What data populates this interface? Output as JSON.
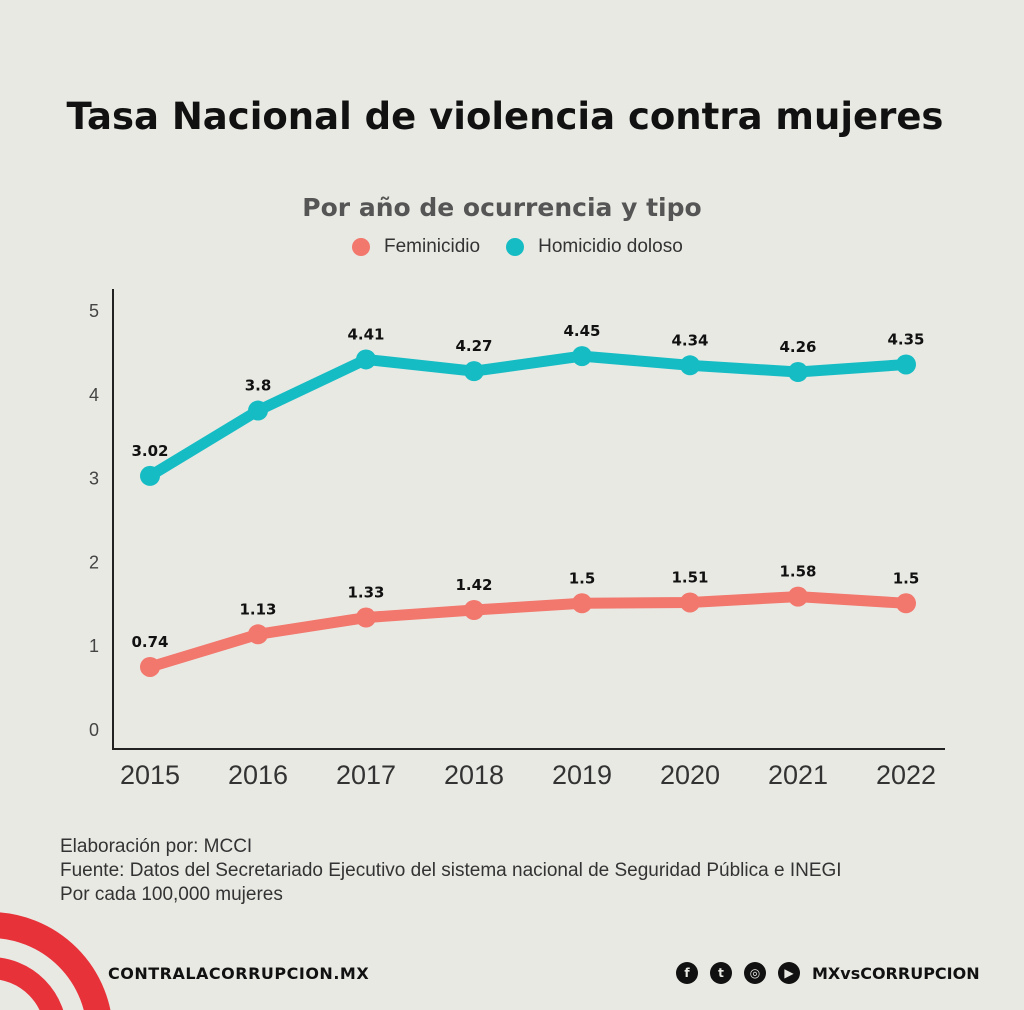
{
  "chart_data": {
    "type": "line",
    "title": "Tasa Nacional de violencia contra mujeres",
    "subtitle": "Por año de ocurrencia y tipo",
    "categories": [
      "2015",
      "2016",
      "2017",
      "2018",
      "2019",
      "2020",
      "2021",
      "2022"
    ],
    "series": [
      {
        "name": "Feminicidio",
        "color": "#f2776c",
        "values": [
          0.74,
          1.13,
          1.33,
          1.42,
          1.5,
          1.51,
          1.58,
          1.5
        ],
        "labels": [
          "0.74",
          "1.13",
          "1.33",
          "1.42",
          "1.5",
          "1.51",
          "1.58",
          "1.5"
        ]
      },
      {
        "name": "Homicidio doloso",
        "color": "#16bcc4",
        "values": [
          3.02,
          3.8,
          4.41,
          4.27,
          4.45,
          4.34,
          4.26,
          4.35
        ],
        "labels": [
          "3.02",
          "3.8",
          "4.41",
          "4.27",
          "4.45",
          "4.34",
          "4.26",
          "4.35"
        ]
      }
    ],
    "ylim": [
      0,
      5
    ],
    "yticks": [
      "0",
      "1",
      "2",
      "3",
      "4",
      "5"
    ],
    "legend": "top",
    "grid": false
  },
  "notes": [
    "Elaboración por: MCCI",
    "Fuente: Datos del Secretariado Ejecutivo del sistema nacional de Seguridad Pública e INEGI",
    "Por cada 100,000 mujeres"
  ],
  "footer": {
    "site": "CONTRALACORRUPCION.MX",
    "handle": "MXvsCORRUPCION",
    "brand_color": "#e8323a",
    "icons": [
      "facebook-icon",
      "twitter-icon",
      "instagram-icon",
      "youtube-icon"
    ]
  }
}
